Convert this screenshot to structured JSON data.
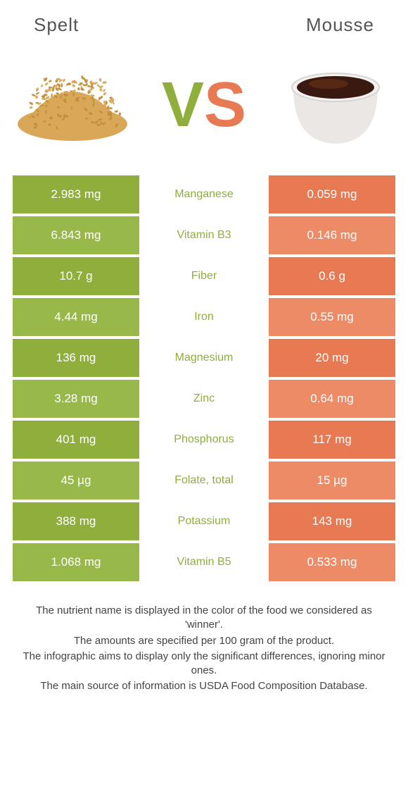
{
  "colors": {
    "left_bg": "#8fae3c",
    "left_bg_alt": "#99b84a",
    "right_bg": "#e77a52",
    "right_bg_alt": "#ed8b66",
    "mid_winner_left": "#8fae3c",
    "mid_winner_right": "#e77a52",
    "title_text": "#555555",
    "vs_v": "#8fae3c",
    "vs_s": "#e77a52",
    "footer_text": "#444444",
    "spelt_grain": "#d8a858",
    "spelt_grain_dark": "#c28f3a",
    "mousse_cup": "#f4f2f0",
    "mousse_cup_shadow": "#d8d4d0",
    "mousse_choc": "#3a1a10",
    "mousse_choc_light": "#6b3218"
  },
  "titles": {
    "left": "Spelt",
    "right": "Mousse"
  },
  "vs": {
    "v": "V",
    "s": "S"
  },
  "rows": [
    {
      "nutrient": "Manganese",
      "left": "2.983 mg",
      "right": "0.059 mg",
      "winner": "left"
    },
    {
      "nutrient": "Vitamin B3",
      "left": "6.843 mg",
      "right": "0.146 mg",
      "winner": "left"
    },
    {
      "nutrient": "Fiber",
      "left": "10.7 g",
      "right": "0.6 g",
      "winner": "left"
    },
    {
      "nutrient": "Iron",
      "left": "4.44 mg",
      "right": "0.55 mg",
      "winner": "left"
    },
    {
      "nutrient": "Magnesium",
      "left": "136 mg",
      "right": "20 mg",
      "winner": "left"
    },
    {
      "nutrient": "Zinc",
      "left": "3.28 mg",
      "right": "0.64 mg",
      "winner": "left"
    },
    {
      "nutrient": "Phosphorus",
      "left": "401 mg",
      "right": "117 mg",
      "winner": "left"
    },
    {
      "nutrient": "Folate, total",
      "left": "45 µg",
      "right": "15 µg",
      "winner": "left"
    },
    {
      "nutrient": "Potassium",
      "left": "388 mg",
      "right": "143 mg",
      "winner": "left"
    },
    {
      "nutrient": "Vitamin B5",
      "left": "1.068 mg",
      "right": "0.533 mg",
      "winner": "left"
    }
  ],
  "footer": [
    "The nutrient name is displayed in the color of the food we considered as 'winner'.",
    "The amounts are specified per 100 gram of the product.",
    "The infographic aims to display only the significant differences, ignoring minor ones.",
    "The main source of information is USDA Food Composition Database."
  ]
}
